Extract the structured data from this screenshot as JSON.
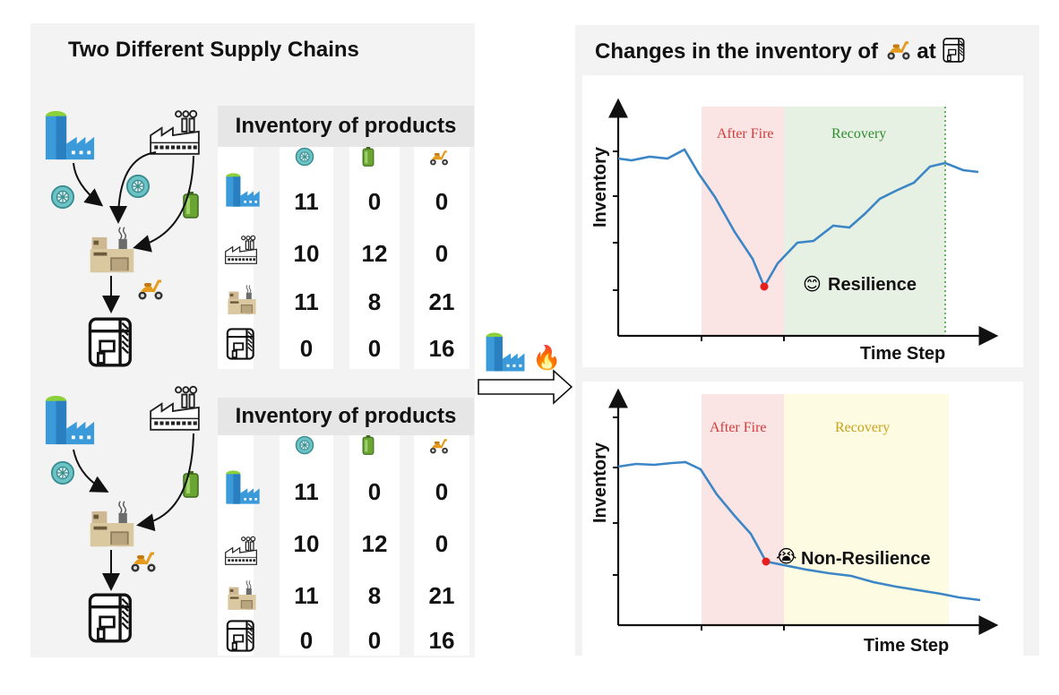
{
  "left_title": "Two Different Supply Chains",
  "right_title": "Changes in the inventory of",
  "right_title_at": "at",
  "table_header": "Inventory of products",
  "top_table": [
    [
      "11",
      "0",
      "0"
    ],
    [
      "10",
      "12",
      "0"
    ],
    [
      "11",
      "8",
      "21"
    ],
    [
      "0",
      "0",
      "16"
    ]
  ],
  "bottom_table": [
    [
      "11",
      "0",
      "0"
    ],
    [
      "10",
      "12",
      "0"
    ],
    [
      "11",
      "8",
      "21"
    ],
    [
      "0",
      "0",
      "16"
    ]
  ],
  "top_chart": {
    "ylabel": "Inventory",
    "xlabel": "Time Step",
    "phase1": "After Fire",
    "phase2": "Recovery",
    "annotation": "Resilience",
    "annotation_emoji": "😊"
  },
  "bottom_chart": {
    "ylabel": "Inventory",
    "xlabel": "Time Step",
    "phase1": "After Fire",
    "phase2": "Recovery",
    "annotation": "Non-Resilience",
    "annotation_emoji": "😭"
  },
  "event_emoji": "🔥",
  "colors": {
    "line": "#3d86c6",
    "min_point": "#e81e1e",
    "after_fire_bg": "#fbe4e4",
    "recovery_good_bg": "#e6f1e4",
    "recovery_bad_bg": "#fdfbe2",
    "after_fire_text": "#d33a3a",
    "recovery_good_text": "#2e8b2e",
    "recovery_bad_text": "#c9a21a",
    "supplier_blue": "#3b9ad9",
    "tire_teal": "#6cc3c6",
    "battery_green": "#6aa534",
    "scooter_orange": "#e59b1e"
  }
}
